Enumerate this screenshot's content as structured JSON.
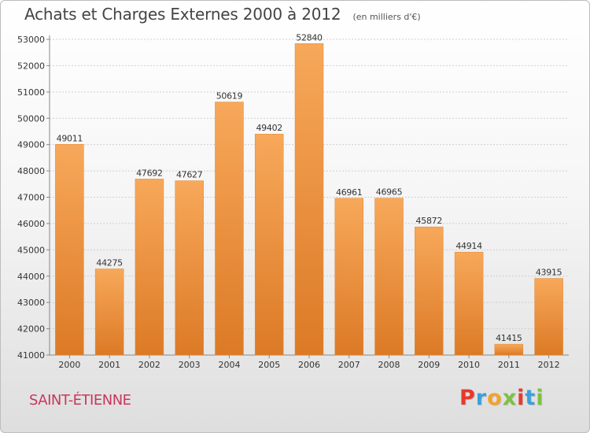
{
  "header": {
    "title": "Achats et Charges Externes 2000 à 2012",
    "unit": "(en milliers d'€)"
  },
  "footer": {
    "city": "SAINT-ÉTIENNE",
    "logo": "Proxiti",
    "logo_colors": [
      "#e8392b",
      "#3aa0dd",
      "#f2a32b",
      "#7dc142",
      "#e8392b",
      "#3aa0dd",
      "#7dc142"
    ]
  },
  "colors": {
    "bar_light": "#f7a85a",
    "bar_dark": "#dc7a26",
    "grid": "#d0d0d0",
    "axis_text": "#333333"
  },
  "chart_data": {
    "type": "bar",
    "title": "Achats et Charges Externes 2000 à 2012",
    "subtitle": "(en milliers d'€)",
    "categories": [
      "2000",
      "2001",
      "2002",
      "2003",
      "2004",
      "2005",
      "2006",
      "2007",
      "2008",
      "2009",
      "2010",
      "2011",
      "2012"
    ],
    "values": [
      49011,
      44275,
      47692,
      47627,
      50619,
      49402,
      52840,
      46961,
      46965,
      45872,
      44914,
      41415,
      43915
    ],
    "data_labels": [
      "49011",
      "44275",
      "47692",
      "47627",
      "50619",
      "49402",
      "52840",
      "46961",
      "46965",
      "45872",
      "44914",
      "41415",
      "43915"
    ],
    "yticks": [
      41000,
      42000,
      43000,
      44000,
      45000,
      46000,
      47000,
      48000,
      49000,
      50000,
      51000,
      52000,
      53000
    ],
    "ytick_labels": [
      "41000",
      "42000",
      "43000",
      "44000",
      "45000",
      "46000",
      "47000",
      "48000",
      "49000",
      "50000",
      "51000",
      "52000",
      "53000"
    ],
    "ylim": [
      41000,
      53000
    ],
    "xlabel": "",
    "ylabel": "",
    "grid": true
  }
}
